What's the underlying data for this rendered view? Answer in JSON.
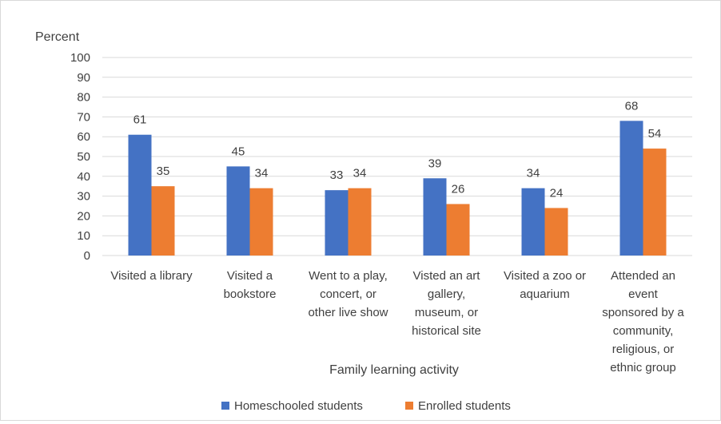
{
  "chart_data": {
    "type": "bar",
    "ylabel": "Percent",
    "xlabel": "Family learning activity",
    "ylim": [
      0,
      100
    ],
    "ytick_step": 10,
    "grid": true,
    "legend_position": "bottom",
    "categories": [
      [
        "Visited a library"
      ],
      [
        "Visited a",
        "bookstore"
      ],
      [
        "Went to a play,",
        "concert, or",
        "other live show"
      ],
      [
        "Visted an art",
        "gallery,",
        "museum, or",
        "historical site"
      ],
      [
        "Visited a zoo or",
        "aquarium"
      ],
      [
        "Attended an",
        "event",
        "sponsored by a",
        "community,",
        "religious, or",
        "ethnic group"
      ]
    ],
    "series": [
      {
        "name": "Homeschooled students",
        "color": "#4472c4",
        "values": [
          61,
          45,
          33,
          39,
          34,
          68
        ]
      },
      {
        "name": "Enrolled students",
        "color": "#ed7d31",
        "values": [
          35,
          34,
          34,
          26,
          24,
          54
        ]
      }
    ]
  }
}
